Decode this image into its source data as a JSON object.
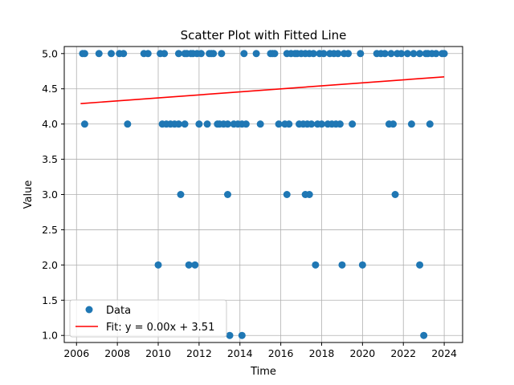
{
  "chart_data": {
    "type": "scatter",
    "title": "Scatter Plot with Fitted Line",
    "xlabel": "Time",
    "ylabel": "Value",
    "xlim": [
      2005.4,
      2024.9
    ],
    "ylim": [
      0.9,
      5.1
    ],
    "grid": true,
    "legend_position": "bottom-left",
    "x_ticks": [
      2006,
      2008,
      2010,
      2012,
      2014,
      2016,
      2018,
      2020,
      2022,
      2024
    ],
    "y_ticks": [
      1.0,
      1.5,
      2.0,
      2.5,
      3.0,
      3.5,
      4.0,
      4.5,
      5.0
    ],
    "x_tick_labels": [
      "2006",
      "2008",
      "2010",
      "2012",
      "2014",
      "2016",
      "2018",
      "2020",
      "2022",
      "2024"
    ],
    "y_tick_labels": [
      "1.0",
      "1.5",
      "2.0",
      "2.5",
      "3.0",
      "3.5",
      "4.0",
      "4.5",
      "5.0"
    ],
    "series": [
      {
        "name": "Data",
        "kind": "scatter",
        "color": "#1f77b4",
        "points": [
          [
            2006.3,
            5
          ],
          [
            2006.4,
            5
          ],
          [
            2006.4,
            4
          ],
          [
            2007.1,
            5
          ],
          [
            2007.7,
            5
          ],
          [
            2008.1,
            5
          ],
          [
            2008.3,
            5
          ],
          [
            2008.5,
            4
          ],
          [
            2009.3,
            5
          ],
          [
            2009.5,
            5
          ],
          [
            2010.0,
            2
          ],
          [
            2010.1,
            5
          ],
          [
            2010.3,
            5
          ],
          [
            2010.2,
            4
          ],
          [
            2010.4,
            4
          ],
          [
            2010.6,
            4
          ],
          [
            2010.8,
            4
          ],
          [
            2011.0,
            4
          ],
          [
            2011.0,
            5
          ],
          [
            2011.1,
            3
          ],
          [
            2011.3,
            4
          ],
          [
            2011.3,
            5
          ],
          [
            2011.4,
            5
          ],
          [
            2011.5,
            2
          ],
          [
            2011.6,
            5
          ],
          [
            2011.7,
            5
          ],
          [
            2011.8,
            2
          ],
          [
            2011.9,
            5
          ],
          [
            2012.0,
            4
          ],
          [
            2012.1,
            5
          ],
          [
            2012.4,
            4
          ],
          [
            2012.5,
            5
          ],
          [
            2012.6,
            5
          ],
          [
            2012.7,
            5
          ],
          [
            2012.9,
            4
          ],
          [
            2013.0,
            4
          ],
          [
            2013.1,
            5
          ],
          [
            2013.2,
            4
          ],
          [
            2013.4,
            4
          ],
          [
            2013.4,
            3
          ],
          [
            2013.5,
            1
          ],
          [
            2013.7,
            4
          ],
          [
            2013.9,
            4
          ],
          [
            2014.1,
            1
          ],
          [
            2014.1,
            4
          ],
          [
            2014.2,
            5
          ],
          [
            2014.3,
            4
          ],
          [
            2014.8,
            5
          ],
          [
            2015.0,
            4
          ],
          [
            2015.5,
            5
          ],
          [
            2015.6,
            5
          ],
          [
            2015.7,
            5
          ],
          [
            2015.9,
            4
          ],
          [
            2016.2,
            4
          ],
          [
            2016.3,
            3
          ],
          [
            2016.3,
            5
          ],
          [
            2016.4,
            4
          ],
          [
            2016.5,
            5
          ],
          [
            2016.7,
            5
          ],
          [
            2016.8,
            5
          ],
          [
            2016.9,
            4
          ],
          [
            2017.0,
            5
          ],
          [
            2017.1,
            4
          ],
          [
            2017.2,
            3
          ],
          [
            2017.2,
            5
          ],
          [
            2017.3,
            4
          ],
          [
            2017.4,
            3
          ],
          [
            2017.4,
            5
          ],
          [
            2017.5,
            4
          ],
          [
            2017.6,
            5
          ],
          [
            2017.7,
            2
          ],
          [
            2017.8,
            4
          ],
          [
            2017.9,
            5
          ],
          [
            2018.0,
            4
          ],
          [
            2018.1,
            5
          ],
          [
            2018.3,
            4
          ],
          [
            2018.4,
            5
          ],
          [
            2018.5,
            4
          ],
          [
            2018.6,
            5
          ],
          [
            2018.7,
            4
          ],
          [
            2018.8,
            5
          ],
          [
            2018.9,
            4
          ],
          [
            2019.0,
            2
          ],
          [
            2019.1,
            5
          ],
          [
            2019.3,
            5
          ],
          [
            2019.5,
            4
          ],
          [
            2019.9,
            5
          ],
          [
            2020.0,
            2
          ],
          [
            2020.7,
            5
          ],
          [
            2020.9,
            5
          ],
          [
            2021.1,
            5
          ],
          [
            2021.3,
            4
          ],
          [
            2021.4,
            5
          ],
          [
            2021.5,
            4
          ],
          [
            2021.6,
            3
          ],
          [
            2021.7,
            5
          ],
          [
            2021.9,
            5
          ],
          [
            2022.2,
            5
          ],
          [
            2022.4,
            4
          ],
          [
            2022.5,
            5
          ],
          [
            2022.8,
            2
          ],
          [
            2022.8,
            5
          ],
          [
            2023.0,
            1
          ],
          [
            2023.1,
            5
          ],
          [
            2023.2,
            5
          ],
          [
            2023.3,
            4
          ],
          [
            2023.4,
            5
          ],
          [
            2023.6,
            5
          ],
          [
            2023.9,
            5
          ],
          [
            2024.0,
            5
          ]
        ]
      },
      {
        "name": "Fit: y = 0.00x + 3.51",
        "kind": "line",
        "color": "#ff0000",
        "points": [
          [
            2006.2,
            4.29
          ],
          [
            2024.0,
            4.67
          ]
        ]
      }
    ]
  }
}
